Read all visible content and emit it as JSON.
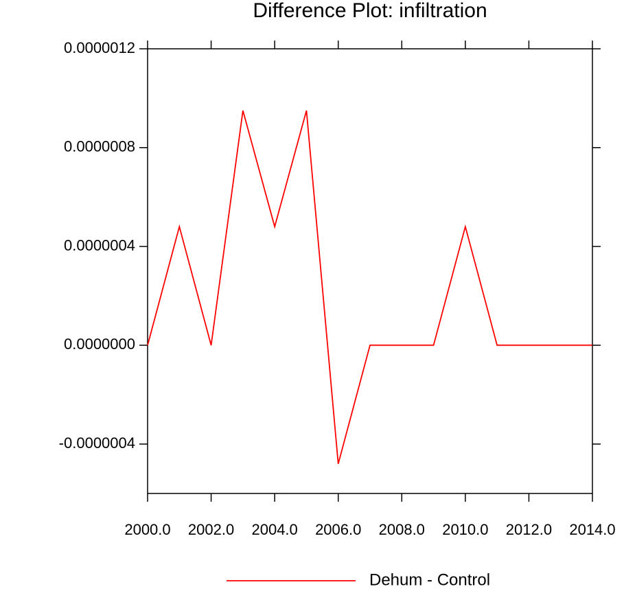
{
  "chart_data": {
    "type": "line",
    "title": "Difference Plot: infiltration",
    "x": [
      2000,
      2001,
      2002,
      2003,
      2004,
      2005,
      2006,
      2007,
      2008,
      2009,
      2010,
      2011,
      2012,
      2013,
      2014
    ],
    "series": [
      {
        "name": "Dehum - Control",
        "color": "#ff0000",
        "values": [
          0,
          4.8e-07,
          0,
          9.5e-07,
          4.8e-07,
          9.5e-07,
          -4.8e-07,
          0,
          0,
          0,
          4.8e-07,
          0,
          0,
          0,
          0
        ]
      }
    ],
    "xlim": [
      2000,
      2014
    ],
    "xticks": [
      {
        "value": 2000,
        "label": "2000.0"
      },
      {
        "value": 2002,
        "label": "2002.0"
      },
      {
        "value": 2004,
        "label": "2004.0"
      },
      {
        "value": 2006,
        "label": "2006.0"
      },
      {
        "value": 2008,
        "label": "2008.0"
      },
      {
        "value": 2010,
        "label": "2010.0"
      },
      {
        "value": 2012,
        "label": "2012.0"
      },
      {
        "value": 2014,
        "label": "2014.0"
      }
    ],
    "ylim": [
      -6e-07,
      1.2e-06
    ],
    "yticks": [
      {
        "value": -4e-07,
        "label": "-0.0000004"
      },
      {
        "value": 0,
        "label": "0.0000000"
      },
      {
        "value": 4e-07,
        "label": "0.0000004"
      },
      {
        "value": 8e-07,
        "label": "0.0000008"
      },
      {
        "value": 1.2e-06,
        "label": "0.0000012"
      }
    ],
    "legend": "bottom"
  }
}
